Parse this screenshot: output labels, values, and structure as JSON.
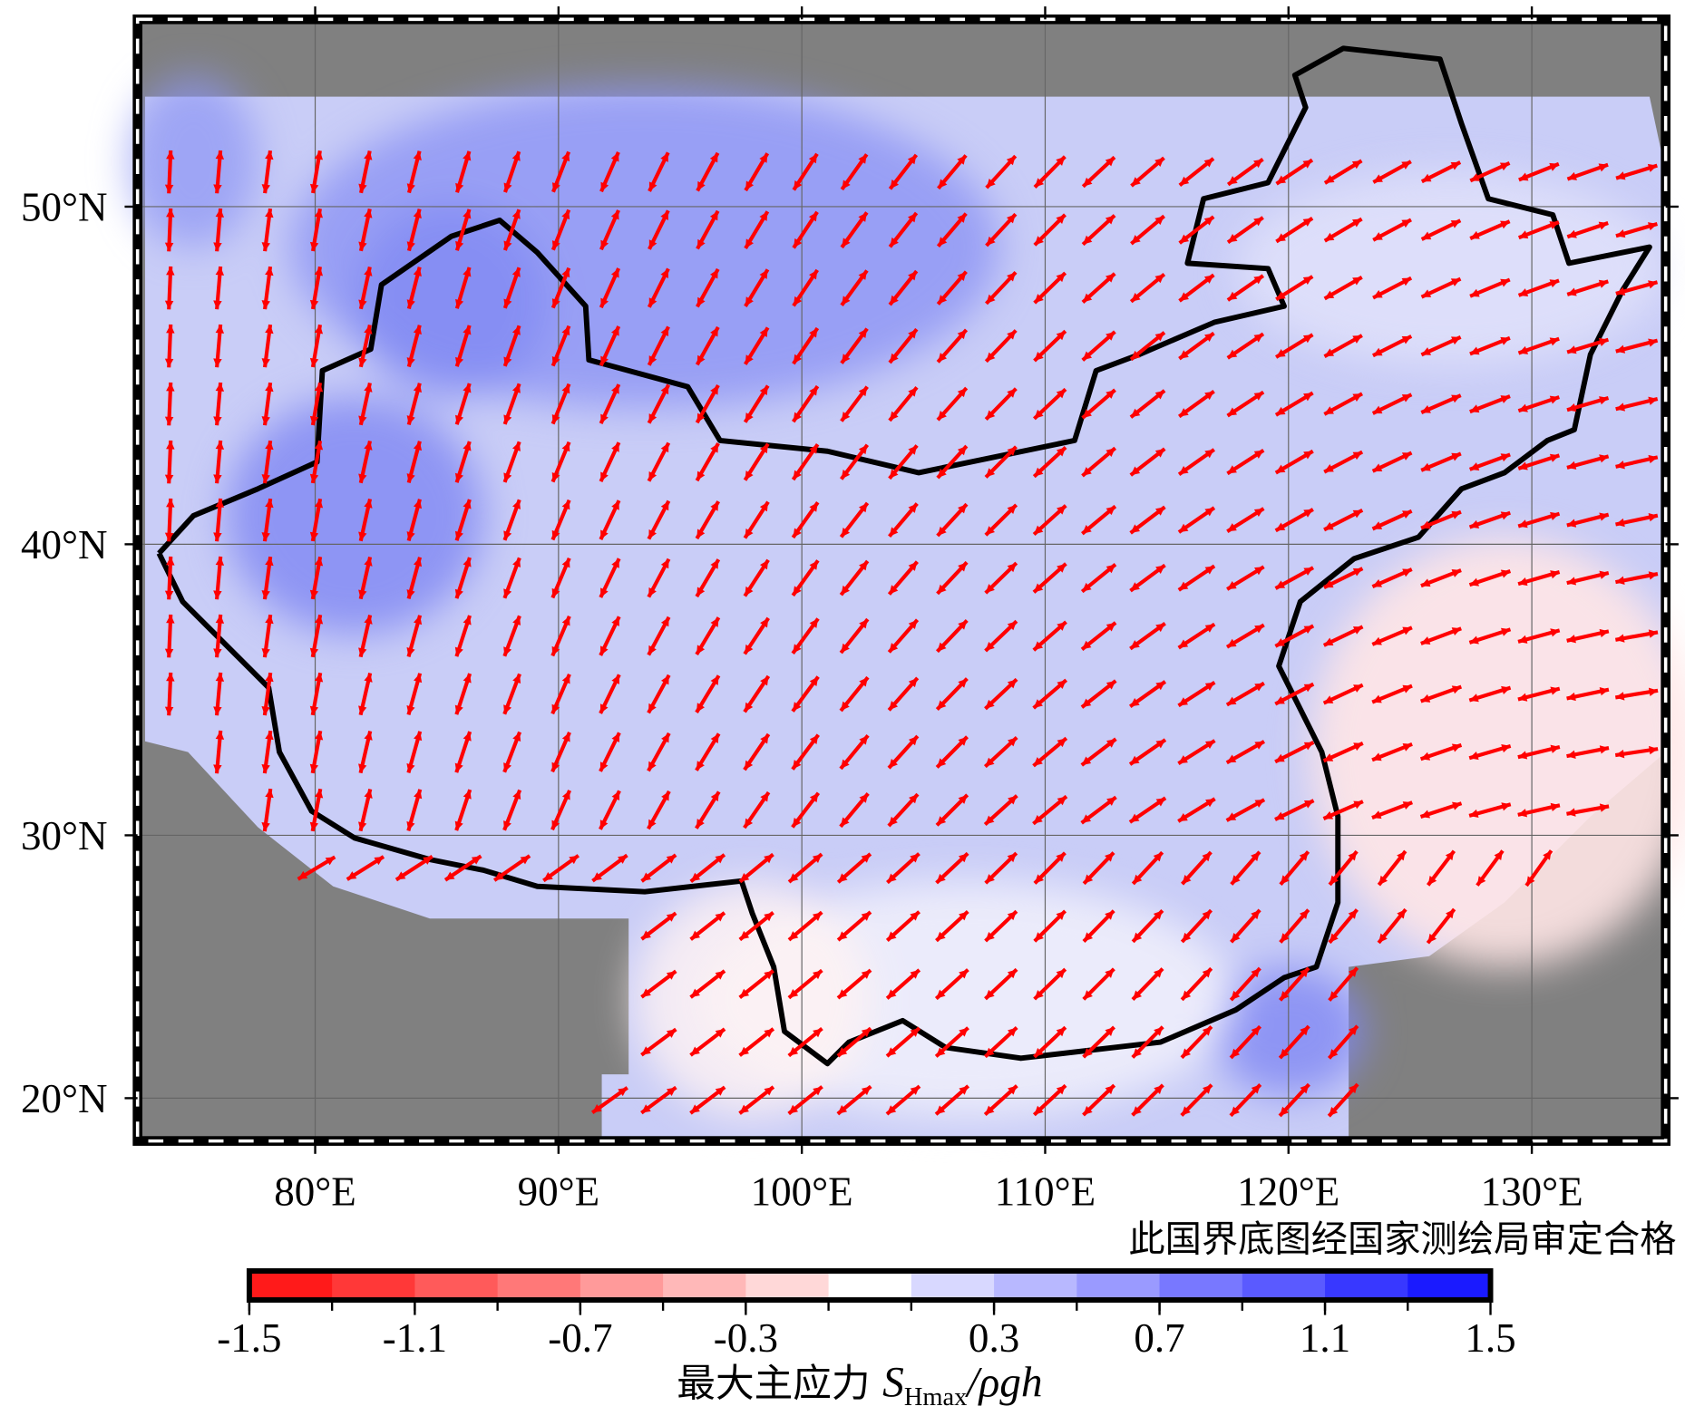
{
  "map": {
    "projection": "mercator",
    "xlim": [
      72.7,
      135.5
    ],
    "ylim": [
      18.3,
      54.8
    ],
    "xticks": [
      {
        "value": 80,
        "label": "80°E"
      },
      {
        "value": 90,
        "label": "90°E"
      },
      {
        "value": 100,
        "label": "100°E"
      },
      {
        "value": 110,
        "label": "110°E"
      },
      {
        "value": 120,
        "label": "120°E"
      },
      {
        "value": 130,
        "label": "130°E"
      }
    ],
    "yticks": [
      {
        "value": 20,
        "label": "20°N"
      },
      {
        "value": 30,
        "label": "30°N"
      },
      {
        "value": 40,
        "label": "40°N"
      },
      {
        "value": 50,
        "label": "50°N"
      }
    ],
    "grid": true,
    "arrow_color": "#ff0000",
    "note": "此国界底图经国家测绘局审定合格",
    "colorbar": {
      "lim": [
        -1.5,
        1.5
      ],
      "ticks": [
        -1.5,
        -1.1,
        -0.7,
        -0.3,
        0.3,
        0.7,
        1.1,
        1.5
      ],
      "colors": [
        "#ff1a1a",
        "#ff3838",
        "#ff5a5a",
        "#ff7878",
        "#ff9a9a",
        "#ffb8b8",
        "#ffd8d8",
        "#ffffff",
        "#d8d8ff",
        "#b8b8ff",
        "#9a9aff",
        "#7878ff",
        "#5a5aff",
        "#3838ff",
        "#1a1aff"
      ],
      "label": "最大主应力 ",
      "symbol": "S",
      "subscript": "Hmax",
      "ratio": "/ρgh"
    }
  }
}
